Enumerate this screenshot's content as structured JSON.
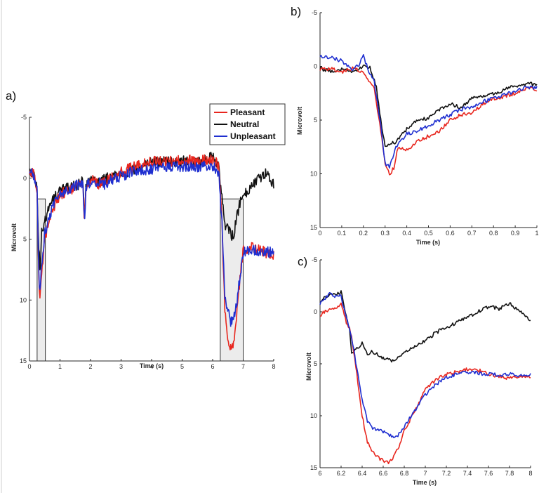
{
  "figure": {
    "panel_labels": [
      "a)",
      "b)",
      "c)"
    ]
  },
  "colors": {
    "Pleasant": "#e8261e",
    "Neutral": "#111111",
    "Unpleasant": "#1f2fd0"
  },
  "chart_data": [
    {
      "id": "a",
      "type": "line",
      "panel_label": "a)",
      "xlabel": "Time (s)",
      "ylabel": "Microvolt",
      "xlim": [
        0,
        8
      ],
      "ylim": [
        -5,
        15
      ],
      "y_reversed": true,
      "xticks": [
        0,
        1,
        2,
        3,
        4,
        5,
        6,
        7,
        8
      ],
      "yticks": [
        -5,
        0,
        5,
        10,
        15
      ],
      "legend": {
        "placement": "top-right",
        "entries": [
          "Pleasant",
          "Neutral",
          "Unpleasant"
        ]
      },
      "highlight_windows": [
        [
          0.25,
          0.52
        ],
        [
          6.25,
          7.0
        ]
      ],
      "series": [
        {
          "name": "Pleasant",
          "x": [
            0,
            0.15,
            0.25,
            0.3,
            0.33,
            0.4,
            0.5,
            0.7,
            1.0,
            1.3,
            1.6,
            1.75,
            1.8,
            1.85,
            2.0,
            2.3,
            2.5,
            3.0,
            3.5,
            4.0,
            4.5,
            5.0,
            5.5,
            6.0,
            6.2,
            6.3,
            6.4,
            6.5,
            6.6,
            6.7,
            6.8,
            6.9,
            7.0,
            7.2,
            7.5,
            8.0
          ],
          "y": [
            -0.5,
            -0.3,
            1.0,
            7.5,
            10.0,
            8.0,
            5.0,
            3.0,
            1.3,
            1.0,
            0.6,
            0.3,
            3.5,
            0.8,
            0.0,
            0.5,
            0.2,
            -0.5,
            -1.0,
            -1.4,
            -1.3,
            -1.5,
            -1.4,
            -1.6,
            -1.0,
            3.5,
            11.0,
            13.0,
            14.2,
            13.5,
            11.0,
            8.0,
            6.0,
            5.6,
            5.9,
            6.3
          ]
        },
        {
          "name": "Neutral",
          "x": [
            0,
            0.15,
            0.25,
            0.3,
            0.35,
            0.4,
            0.5,
            0.7,
            1.0,
            1.3,
            1.6,
            1.75,
            1.8,
            1.85,
            2.0,
            2.3,
            2.5,
            3.0,
            3.5,
            4.0,
            4.5,
            5.0,
            5.5,
            6.0,
            6.2,
            6.3,
            6.4,
            6.5,
            6.6,
            6.7,
            6.8,
            6.9,
            7.0,
            7.2,
            7.5,
            7.8,
            8.0
          ],
          "y": [
            -0.5,
            -0.3,
            1.0,
            5.5,
            7.5,
            4.5,
            3.5,
            2.0,
            1.0,
            0.8,
            0.5,
            0.2,
            3.5,
            0.8,
            0.0,
            0.3,
            0.0,
            -0.4,
            -0.8,
            -1.4,
            -1.3,
            -1.4,
            -1.2,
            -1.8,
            -0.8,
            1.5,
            4.0,
            4.0,
            4.8,
            4.5,
            3.0,
            2.0,
            1.5,
            0.8,
            0.0,
            -0.5,
            0.5
          ]
        },
        {
          "name": "Unpleasant",
          "x": [
            0,
            0.15,
            0.25,
            0.3,
            0.33,
            0.4,
            0.5,
            0.7,
            1.0,
            1.3,
            1.6,
            1.75,
            1.8,
            1.85,
            2.0,
            2.3,
            2.5,
            3.0,
            3.5,
            4.0,
            4.5,
            5.0,
            5.5,
            6.0,
            6.2,
            6.3,
            6.4,
            6.5,
            6.6,
            6.7,
            6.8,
            6.9,
            7.0,
            7.2,
            7.5,
            8.0
          ],
          "y": [
            -0.6,
            -0.3,
            1.0,
            7.0,
            9.5,
            7.0,
            4.5,
            2.8,
            1.2,
            0.9,
            0.5,
            0.3,
            3.8,
            0.8,
            0.2,
            0.4,
            0.5,
            -0.2,
            -0.6,
            -0.7,
            -0.9,
            -1.0,
            -0.9,
            -1.0,
            -0.5,
            3.5,
            9.5,
            11.0,
            11.8,
            11.5,
            10.0,
            8.0,
            6.2,
            5.8,
            6.0,
            6.1
          ]
        }
      ]
    },
    {
      "id": "b",
      "type": "line",
      "panel_label": "b)",
      "xlabel": "Time (s)",
      "ylabel": "Microvolt",
      "xlim": [
        0,
        1
      ],
      "ylim": [
        -5,
        15
      ],
      "y_reversed": true,
      "xticks": [
        0,
        0.1,
        0.2,
        0.3,
        0.4,
        0.5,
        0.6,
        0.7,
        0.8,
        0.9,
        1
      ],
      "yticks": [
        -5,
        0,
        5,
        10,
        15
      ],
      "series": [
        {
          "name": "Pleasant",
          "x": [
            0,
            0.05,
            0.1,
            0.15,
            0.2,
            0.25,
            0.28,
            0.3,
            0.32,
            0.34,
            0.36,
            0.4,
            0.45,
            0.5,
            0.55,
            0.6,
            0.65,
            0.7,
            0.75,
            0.8,
            0.85,
            0.9,
            0.95,
            1.0
          ],
          "y": [
            0.3,
            0.2,
            0.5,
            0.2,
            0.5,
            2.0,
            6.0,
            9.0,
            10.0,
            9.5,
            7.5,
            7.8,
            7.0,
            6.5,
            6.0,
            5.0,
            4.5,
            4.3,
            3.5,
            3.0,
            2.8,
            2.5,
            2.0,
            2.2
          ]
        },
        {
          "name": "Neutral",
          "x": [
            0,
            0.05,
            0.1,
            0.15,
            0.2,
            0.23,
            0.26,
            0.28,
            0.3,
            0.32,
            0.35,
            0.4,
            0.45,
            0.5,
            0.55,
            0.6,
            0.65,
            0.7,
            0.75,
            0.8,
            0.85,
            0.9,
            0.95,
            1.0
          ],
          "y": [
            0.2,
            0.5,
            0.2,
            0.5,
            0.0,
            0.0,
            2.0,
            5.0,
            7.5,
            7.3,
            7.0,
            5.8,
            5.0,
            4.8,
            4.0,
            3.5,
            3.8,
            3.0,
            2.8,
            2.5,
            2.2,
            1.8,
            1.6,
            1.7
          ]
        },
        {
          "name": "Unpleasant",
          "x": [
            0,
            0.05,
            0.1,
            0.15,
            0.18,
            0.2,
            0.22,
            0.25,
            0.28,
            0.3,
            0.32,
            0.35,
            0.38,
            0.4,
            0.45,
            0.5,
            0.55,
            0.6,
            0.65,
            0.7,
            0.75,
            0.8,
            0.85,
            0.9,
            0.95,
            1.0
          ],
          "y": [
            -1.0,
            -0.8,
            -0.5,
            0.3,
            -0.2,
            -1.0,
            0.2,
            1.5,
            5.5,
            9.0,
            9.3,
            7.5,
            6.8,
            6.3,
            6.0,
            5.5,
            5.0,
            4.5,
            4.0,
            3.8,
            3.3,
            3.0,
            2.6,
            2.3,
            2.0,
            2.0
          ]
        }
      ]
    },
    {
      "id": "c",
      "type": "line",
      "panel_label": "c)",
      "xlabel": "Time (s)",
      "ylabel": "Microvolt",
      "xlim": [
        6,
        8
      ],
      "ylim": [
        -5,
        15
      ],
      "y_reversed": true,
      "xticks": [
        6,
        6.2,
        6.4,
        6.6,
        6.8,
        7,
        7.2,
        7.4,
        7.6,
        7.8,
        8
      ],
      "yticks": [
        -5,
        0,
        5,
        10,
        15
      ],
      "series": [
        {
          "name": "Pleasant",
          "x": [
            6.0,
            6.1,
            6.15,
            6.2,
            6.25,
            6.28,
            6.3,
            6.35,
            6.4,
            6.45,
            6.5,
            6.55,
            6.6,
            6.65,
            6.7,
            6.75,
            6.8,
            6.9,
            7.0,
            7.1,
            7.2,
            7.3,
            7.4,
            7.5,
            7.6,
            7.7,
            7.8,
            7.9,
            8.0
          ],
          "y": [
            0.3,
            -0.3,
            -0.2,
            -0.8,
            1.0,
            1.5,
            2.5,
            6.0,
            10.0,
            12.5,
            13.5,
            14.0,
            14.3,
            14.5,
            14.0,
            13.0,
            11.5,
            9.5,
            7.5,
            6.5,
            6.0,
            5.8,
            5.5,
            5.6,
            6.0,
            6.2,
            6.4,
            6.3,
            6.2
          ]
        },
        {
          "name": "Neutral",
          "x": [
            6.0,
            6.1,
            6.15,
            6.2,
            6.25,
            6.28,
            6.3,
            6.35,
            6.4,
            6.45,
            6.5,
            6.6,
            6.7,
            6.8,
            6.9,
            7.0,
            7.1,
            7.2,
            7.3,
            7.4,
            7.5,
            7.6,
            7.7,
            7.8,
            7.9,
            8.0
          ],
          "y": [
            -1.0,
            -1.8,
            -1.5,
            -2.0,
            0.5,
            1.5,
            4.0,
            3.5,
            3.0,
            4.0,
            3.8,
            4.5,
            4.8,
            4.0,
            3.3,
            2.8,
            2.0,
            1.5,
            1.0,
            0.5,
            0.0,
            -0.5,
            -0.3,
            -0.8,
            0.0,
            0.8
          ]
        },
        {
          "name": "Unpleasant",
          "x": [
            6.0,
            6.1,
            6.15,
            6.2,
            6.25,
            6.28,
            6.3,
            6.35,
            6.4,
            6.45,
            6.5,
            6.55,
            6.6,
            6.65,
            6.7,
            6.75,
            6.8,
            6.9,
            7.0,
            7.1,
            7.2,
            7.3,
            7.4,
            7.5,
            7.6,
            7.7,
            7.8,
            7.9,
            8.0
          ],
          "y": [
            -0.8,
            -1.8,
            -1.5,
            -1.5,
            0.5,
            1.5,
            2.5,
            5.5,
            8.5,
            10.5,
            11.2,
            11.3,
            11.5,
            11.8,
            12.0,
            11.8,
            11.0,
            9.5,
            8.0,
            7.0,
            6.3,
            6.0,
            5.8,
            5.9,
            6.0,
            6.1,
            6.0,
            6.2,
            6.0
          ]
        }
      ]
    }
  ]
}
